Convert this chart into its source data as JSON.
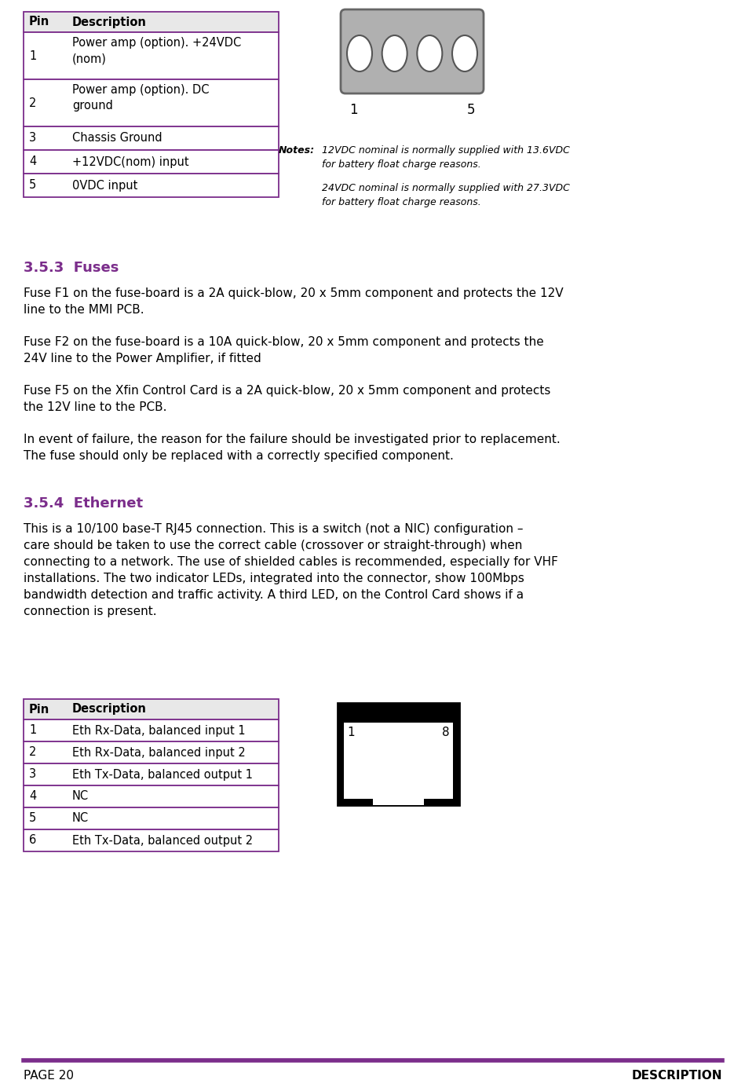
{
  "bg_color": "#ffffff",
  "text_color": "#000000",
  "purple_color": "#7B2D8B",
  "header_bg": "#e8e8e8",
  "table1_header": [
    "Pin",
    "Description"
  ],
  "table1_rows_data": [
    [
      "1",
      "Power amp (option). +24VDC\n(nom)",
      2
    ],
    [
      "2",
      "Power amp (option). DC\nground",
      2
    ],
    [
      "3",
      "Chassis Ground",
      1
    ],
    [
      "4",
      "+12VDC(nom) input",
      1
    ],
    [
      "5",
      "0VDC input",
      1
    ]
  ],
  "notes_label": "Notes:",
  "notes_text1": "12VDC nominal is normally supplied with 13.6VDC\nfor battery float charge reasons.",
  "notes_text2": "24VDC nominal is normally supplied with 27.3VDC\nfor battery float charge reasons.",
  "section_fuses_title": "3.5.3  Fuses",
  "fuses_para1": "Fuse F1 on the fuse-board is a 2A quick-blow, 20 x 5mm component and protects the 12V\nline to the MMI PCB.",
  "fuses_para2": "Fuse F2 on the fuse-board is a 10A quick-blow, 20 x 5mm component and protects the\n24V line to the Power Amplifier, if fitted",
  "fuses_para3": "Fuse F5 on the Xfin Control Card is a 2A quick-blow, 20 x 5mm component and protects\nthe 12V line to the PCB.",
  "fuses_para4": "In event of failure, the reason for the failure should be investigated prior to replacement.\nThe fuse should only be replaced with a correctly specified component.",
  "section_eth_title": "3.5.4  Ethernet",
  "eth_para": "This is a 10/100 base-T RJ45 connection. This is a switch (not a NIC) configuration –\ncare should be taken to use the correct cable (crossover or straight-through) when\nconnecting to a network. The use of shielded cables is recommended, especially for VHF\ninstallations. The two indicator LEDs, integrated into the connector, show 100Mbps\nbandwidth detection and traffic activity. A third LED, on the Control Card shows if a\nconnection is present.",
  "table2_header": [
    "Pin",
    "Description"
  ],
  "table2_rows_data": [
    [
      "1",
      "Eth Rx-Data, balanced input 1",
      1
    ],
    [
      "2",
      "Eth Rx-Data, balanced input 2",
      1
    ],
    [
      "3",
      "Eth Tx-Data, balanced output 1",
      1
    ],
    [
      "4",
      "NC",
      1
    ],
    [
      "5",
      "NC",
      1
    ],
    [
      "6",
      "Eth Tx-Data, balanced output 2",
      1
    ]
  ],
  "footer_left": "PAGE 20",
  "footer_right": "DESCRIPTION"
}
